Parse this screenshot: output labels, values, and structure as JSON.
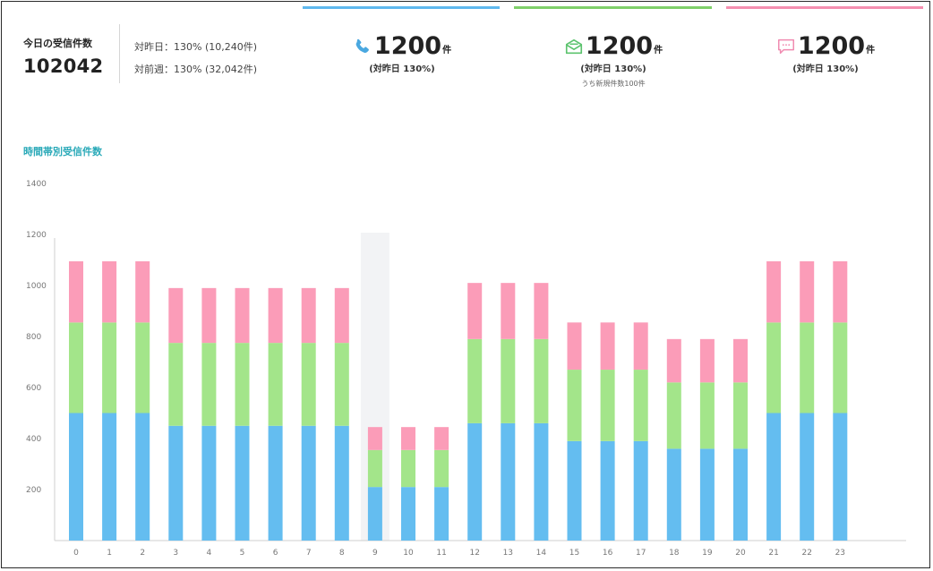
{
  "summary": {
    "label": "今日の受信件数",
    "total": "102042",
    "compare_day": "対昨日：130% (10,240件)",
    "compare_week": "対前週：130% (32,042件)"
  },
  "cards": [
    {
      "icon": "phone-icon",
      "value": "1200",
      "unit": "件",
      "sub": "(対昨日 130%)",
      "note": "",
      "color": "#5fb8ee"
    },
    {
      "icon": "mail-icon",
      "value": "1200",
      "unit": "件",
      "sub": "(対昨日 130%)",
      "note": "うち新規件数100件",
      "color": "#7fd06a"
    },
    {
      "icon": "chat-icon",
      "value": "1200",
      "unit": "件",
      "sub": "(対昨日 130%)",
      "note": "",
      "color": "#f58fb0"
    }
  ],
  "chart_title": "時間帯別受信件数",
  "chart_data": {
    "type": "bar",
    "stacked": true,
    "title": "時間帯別受信件数",
    "categories": [
      "0",
      "1",
      "2",
      "3",
      "4",
      "5",
      "6",
      "7",
      "8",
      "9",
      "10",
      "11",
      "12",
      "13",
      "14",
      "15",
      "16",
      "17",
      "18",
      "19",
      "20",
      "21",
      "22",
      "23"
    ],
    "series": [
      {
        "color": "#64bdf0",
        "values": [
          500,
          500,
          500,
          450,
          450,
          450,
          450,
          450,
          450,
          210,
          210,
          210,
          460,
          460,
          460,
          390,
          390,
          390,
          360,
          360,
          360,
          500,
          500,
          500
        ]
      },
      {
        "color": "#a3e58a",
        "values": [
          355,
          355,
          355,
          325,
          325,
          325,
          325,
          325,
          325,
          145,
          145,
          145,
          330,
          330,
          330,
          280,
          280,
          280,
          260,
          260,
          260,
          355,
          355,
          355
        ]
      },
      {
        "color": "#fb9cb8",
        "values": [
          240,
          240,
          240,
          215,
          215,
          215,
          215,
          215,
          215,
          90,
          90,
          90,
          220,
          220,
          220,
          185,
          185,
          185,
          170,
          170,
          170,
          240,
          240,
          240
        ]
      }
    ],
    "yticks": [
      200,
      400,
      600,
      800,
      1000,
      1200,
      1400
    ],
    "ylim": [
      0,
      1400
    ],
    "highlight_category": "9",
    "highlight_color": "#f2f3f5",
    "grid": false
  }
}
